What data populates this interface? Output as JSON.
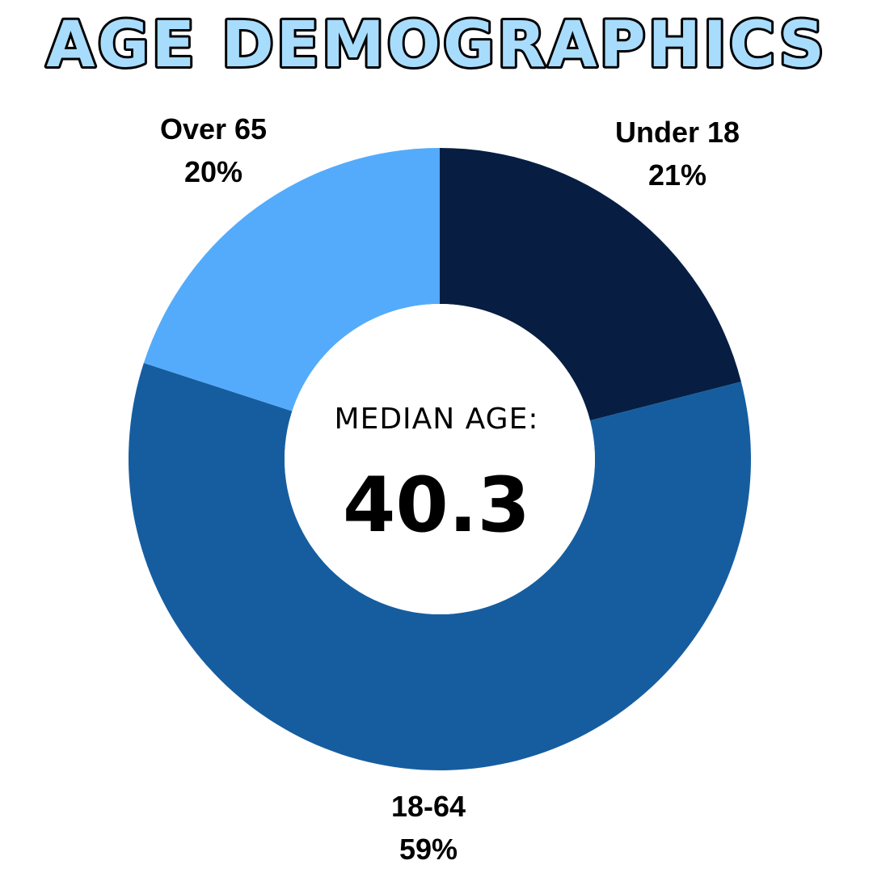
{
  "chart_data": {
    "type": "pie",
    "title": "AGE DEMOGRAPHICS",
    "donut": true,
    "start_angle_deg": 0,
    "direction": "clockwise",
    "center_label": "MEDIAN AGE:",
    "center_value": "40.3",
    "slices": [
      {
        "label": "Under 18",
        "value": 21,
        "display": "21%",
        "color": "#071e42"
      },
      {
        "label": "18-64",
        "value": 59,
        "display": "59%",
        "color": "#165da0"
      },
      {
        "label": "Over 65",
        "value": 20,
        "display": "20%",
        "color": "#54abfb"
      }
    ]
  },
  "colors": {
    "title_fill": "#a8dcfd",
    "title_stroke": "#000000",
    "background": "#ffffff",
    "text": "#000000"
  }
}
